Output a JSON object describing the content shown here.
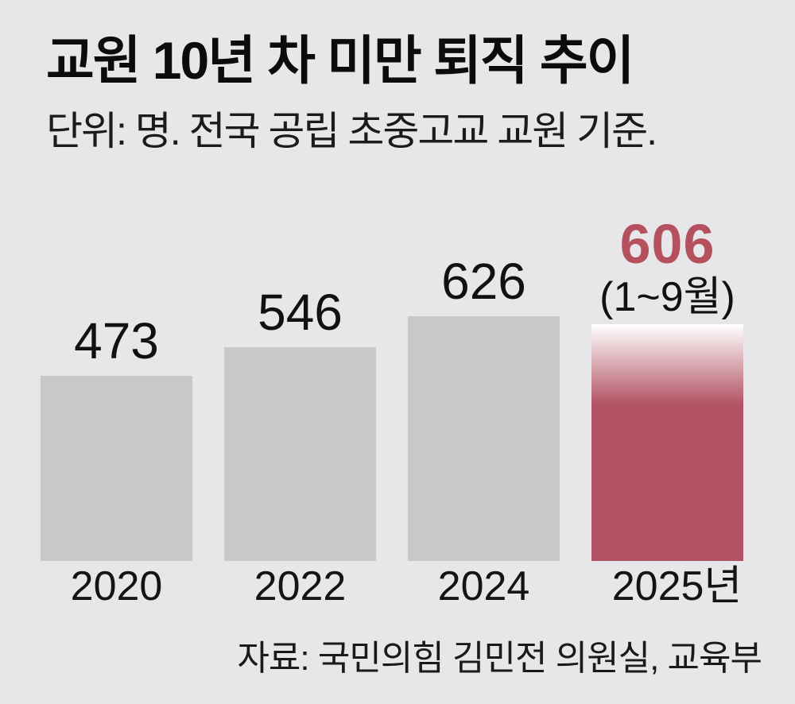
{
  "header": {
    "title": "교원 10년 차 미만 퇴직 추이",
    "subtitle": "단위: 명. 전국 공립 초중고교 교원 기준."
  },
  "chart_data": {
    "type": "bar",
    "title": "교원 10년 차 미만 퇴직 추이",
    "unit_note": "단위: 명. 전국 공립 초중고교 교원 기준.",
    "categories": [
      "2020",
      "2022",
      "2024",
      "2025년"
    ],
    "values": [
      473,
      546,
      626,
      606
    ],
    "bars": [
      {
        "category": "2020",
        "value": 473,
        "label": "473",
        "highlight": false
      },
      {
        "category": "2022",
        "value": 546,
        "label": "546",
        "highlight": false
      },
      {
        "category": "2024",
        "value": 626,
        "label": "626",
        "highlight": false
      },
      {
        "category": "2025년",
        "value": 606,
        "label": "606",
        "sub_label": "(1~9월)",
        "highlight": true
      }
    ],
    "ylim": [
      0,
      650
    ],
    "gridlines": false,
    "value_labels_position": "above bars",
    "bar_color": "#c7c8ca",
    "highlight_color": "#b25364",
    "highlight_gradient_top": "#ffffff",
    "highlight_label_color": "#b5505f",
    "background_color": "#e7e7e9"
  },
  "source": {
    "label": "자료: 국민의힘 김민전 의원실, 교육부"
  }
}
